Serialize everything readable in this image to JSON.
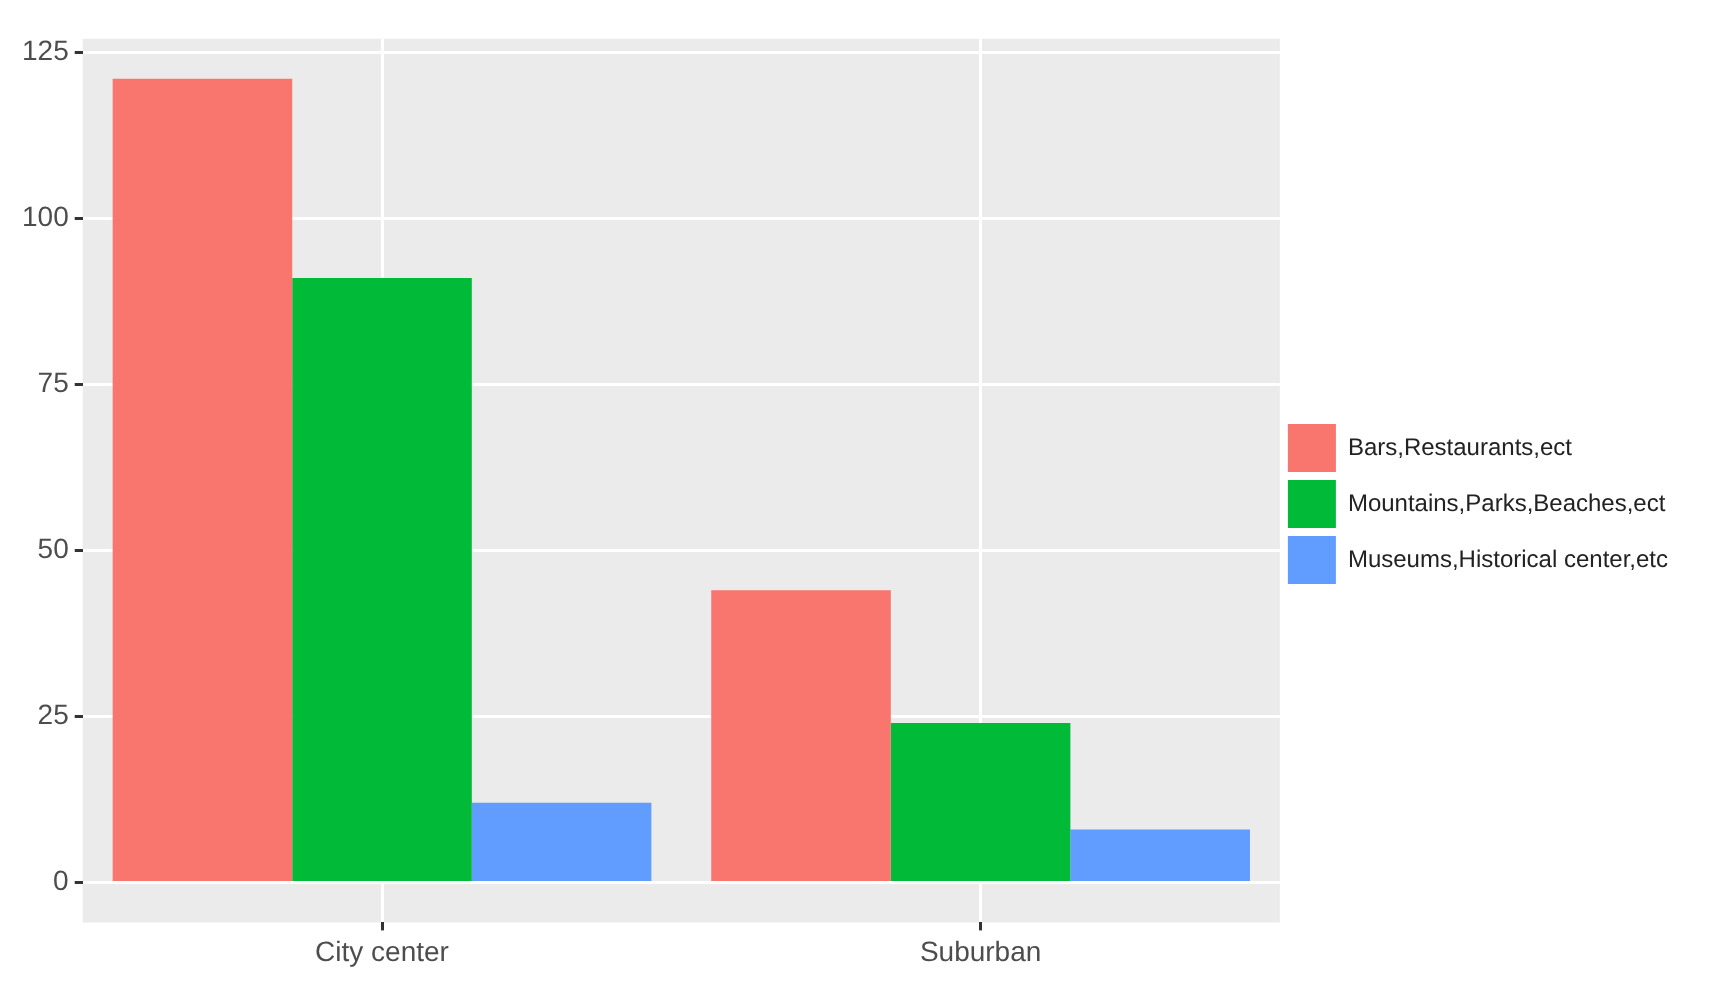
{
  "chart_data": {
    "type": "bar",
    "categories": [
      "City center",
      "Suburban"
    ],
    "series": [
      {
        "name": "Bars,Restaurants,ect",
        "color": "#f8766d",
        "values": [
          121,
          44
        ]
      },
      {
        "name": "Mountains,Parks,Beaches,ect",
        "color": "#00ba38",
        "values": [
          91,
          24
        ]
      },
      {
        "name": "Museums,Historical center,etc",
        "color": "#619cff",
        "values": [
          12,
          8
        ]
      }
    ],
    "ylim": [
      -6,
      127
    ],
    "yticks": [
      0,
      25,
      50,
      75,
      100,
      125
    ],
    "grid": true,
    "legend": "right"
  }
}
